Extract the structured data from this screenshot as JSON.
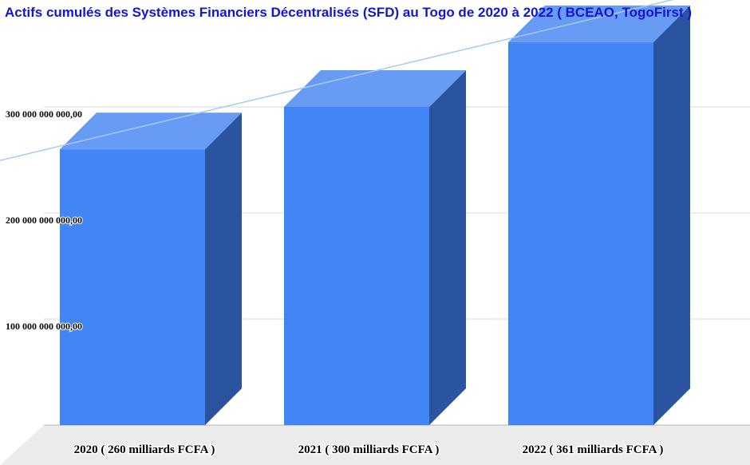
{
  "chart_data": {
    "type": "bar",
    "title": "Actifs cumulés des Systèmes Financiers Décentralisés (SFD) au Togo de 2020 à 2022 ( BCEAO, TogoFirst )",
    "categories": [
      "2020 ( 260 milliards FCFA )",
      "2021 ( 300 milliards FCFA )",
      "2022 ( 361 milliards FCFA )"
    ],
    "values": [
      260000000000,
      300000000000,
      361000000000
    ],
    "y_ticks": [
      {
        "value": 100000000000,
        "label": "100 000 000 000,00"
      },
      {
        "value": 200000000000,
        "label": "200 000 000 000,00"
      },
      {
        "value": 300000000000,
        "label": "300 000 000 000,00"
      }
    ],
    "ylim": [
      0,
      400000000000
    ],
    "xlabel": "",
    "ylabel": "",
    "grid": true,
    "legend": "none",
    "style": "3d-bar",
    "trendline": true,
    "colors": {
      "bar_front": "#4285f4",
      "bar_top": "#689bf3",
      "bar_side": "#2a54a0",
      "trendline": "#a9c9f0",
      "grid": "#d9d9d9",
      "floor": "#ececec",
      "title": "#1414d8"
    }
  }
}
